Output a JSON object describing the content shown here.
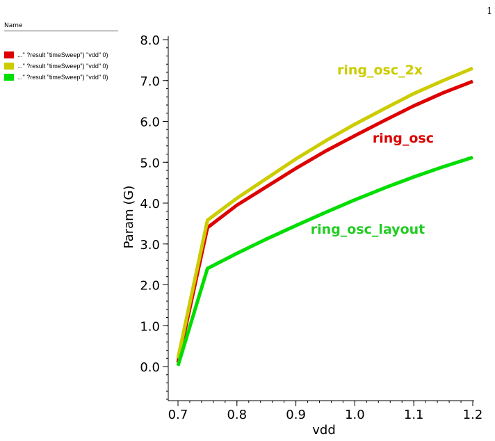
{
  "page_number": "1",
  "legend": {
    "header": "Name",
    "items": [
      {
        "label": "...\" ?result \"timeSweep\") \"vdd\" 0)",
        "color": "#dd0000"
      },
      {
        "label": "...\" ?result \"timeSweep\") \"vdd\" 0)",
        "color": "#cccc00"
      },
      {
        "label": "...\" ?result \"timeSweep\") \"vdd\" 0)",
        "color": "#00dd00"
      }
    ]
  },
  "chart_data": {
    "type": "line",
    "xlabel": "vdd",
    "ylabel": "Param (G)",
    "xlim": [
      0.7,
      1.2
    ],
    "ylim": [
      -0.8,
      8.1
    ],
    "xticks": [
      "0.7",
      "0.8",
      "0.9",
      "1.0",
      "1.1",
      "1.2"
    ],
    "yticks": [
      "0.0",
      "1.0",
      "2.0",
      "3.0",
      "4.0",
      "5.0",
      "6.0",
      "7.0",
      "8.0"
    ],
    "x": [
      0.7,
      0.75,
      0.8,
      0.85,
      0.9,
      0.95,
      1.0,
      1.05,
      1.1,
      1.15,
      1.2
    ],
    "series": [
      {
        "name": "ring_osc",
        "color": "#dd0000",
        "values": [
          0.1,
          3.4,
          3.95,
          4.4,
          4.85,
          5.27,
          5.65,
          6.02,
          6.38,
          6.7,
          6.98
        ]
      },
      {
        "name": "ring_osc_2x",
        "color": "#cccc00",
        "values": [
          0.2,
          3.58,
          4.12,
          4.6,
          5.08,
          5.52,
          5.93,
          6.31,
          6.68,
          7.0,
          7.3
        ]
      },
      {
        "name": "ring_osc_layout",
        "color": "#00dd00",
        "values": [
          0.02,
          2.4,
          2.77,
          3.12,
          3.45,
          3.77,
          4.08,
          4.37,
          4.64,
          4.89,
          5.12
        ]
      }
    ],
    "annotations": [
      {
        "text": "ring_osc_2x",
        "x": 0.97,
        "y": 7.15,
        "color": "#cccc00"
      },
      {
        "text": "ring_osc",
        "x": 1.03,
        "y": 5.48,
        "color": "#dd0000"
      },
      {
        "text": "ring_osc_layout",
        "x": 0.925,
        "y": 3.25,
        "color": "#22cc22"
      }
    ]
  }
}
